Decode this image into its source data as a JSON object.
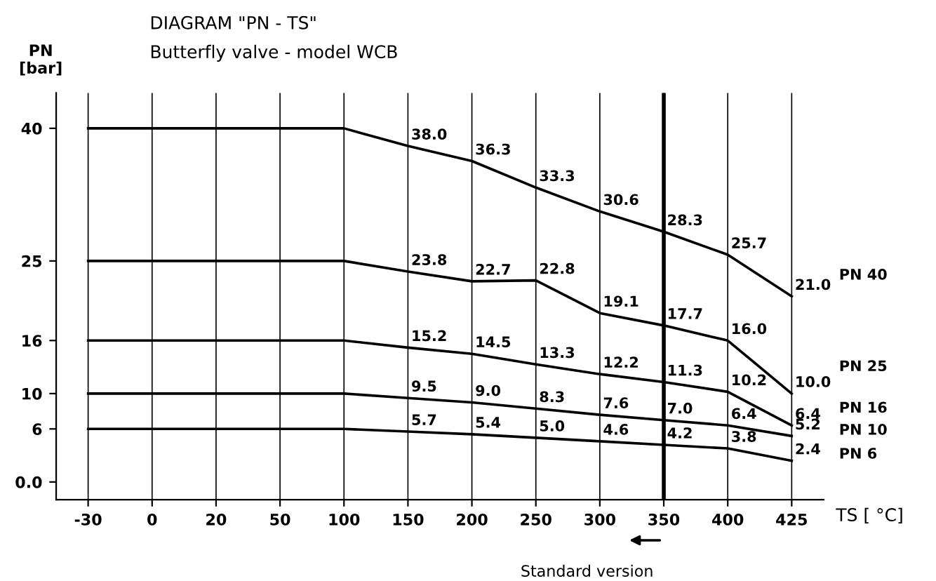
{
  "chart_data": {
    "type": "line",
    "title": "DIAGRAM \"PN - TS\"",
    "subtitle": "Butterfly valve - model WCB",
    "ylabel": "PN\n[bar]",
    "xlabel": "TS [ °C]",
    "categories": [
      "-30",
      "0",
      "20",
      "50",
      "100",
      "150",
      "200",
      "250",
      "300",
      "350",
      "400",
      "425"
    ],
    "series": [
      {
        "name": "PN 40",
        "color": "#000000",
        "values": [
          40,
          40,
          40,
          40,
          40,
          38.0,
          36.3,
          33.3,
          30.6,
          28.3,
          25.7,
          21.0
        ],
        "value_labels": [
          null,
          null,
          null,
          null,
          null,
          "38.0",
          "36.3",
          "33.3",
          "30.6",
          "28.3",
          "25.7",
          "21.0"
        ]
      },
      {
        "name": "PN 25",
        "color": "#000000",
        "values": [
          25,
          25,
          25,
          25,
          25,
          23.8,
          22.7,
          22.8,
          19.1,
          17.7,
          16.0,
          10.0
        ],
        "value_labels": [
          null,
          null,
          null,
          null,
          null,
          "23.8",
          "22.7",
          "22.8",
          "19.1",
          "17.7",
          "16.0",
          "10.0"
        ]
      },
      {
        "name": "PN 16",
        "color": "#000000",
        "values": [
          16,
          16,
          16,
          16,
          16,
          15.2,
          14.5,
          13.3,
          12.2,
          11.3,
          10.2,
          6.4
        ],
        "value_labels": [
          null,
          null,
          null,
          null,
          null,
          "15.2",
          "14.5",
          "13.3",
          "12.2",
          "11.3",
          "10.2",
          "6.4"
        ]
      },
      {
        "name": "PN 10",
        "color": "#000000",
        "values": [
          10,
          10,
          10,
          10,
          10,
          9.5,
          9.0,
          8.3,
          7.6,
          7.0,
          6.4,
          5.2
        ],
        "value_labels": [
          null,
          null,
          null,
          null,
          null,
          "9.5",
          "9.0",
          "8.3",
          "7.6",
          "7.0",
          "6.4",
          "5.2"
        ]
      },
      {
        "name": "PN 6",
        "color": "#000000",
        "values": [
          6,
          6,
          6,
          6,
          6,
          5.7,
          5.4,
          5.0,
          4.6,
          4.2,
          3.8,
          2.4
        ],
        "value_labels": [
          null,
          null,
          null,
          null,
          null,
          "5.7",
          "5.4",
          "5.0",
          "4.6",
          "4.2",
          "3.8",
          "2.4"
        ]
      }
    ],
    "ylim": [
      -2,
      44
    ],
    "yticks": [
      {
        "value": 0,
        "label": "0.0"
      },
      6,
      10,
      16,
      25,
      40
    ],
    "ref_lines": [
      {
        "axis": "x",
        "value": "350",
        "color": "#000000"
      }
    ],
    "annotations": [
      "Standard version"
    ],
    "grid": "x",
    "legend": false,
    "marker": "none",
    "line_style": "solid"
  }
}
